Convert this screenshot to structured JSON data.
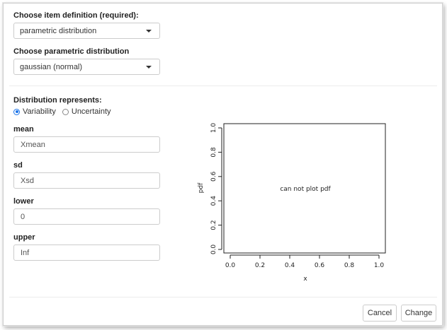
{
  "item_definition": {
    "label": "Choose item definition (required):",
    "selected": "parametric distribution"
  },
  "parametric_distribution": {
    "label": "Choose parametric distribution",
    "selected": "gaussian (normal)"
  },
  "represents": {
    "label": "Distribution represents:",
    "options": [
      {
        "label": "Variability",
        "checked": true
      },
      {
        "label": "Uncertainty",
        "checked": false
      }
    ]
  },
  "fields": {
    "mean": {
      "label": "mean",
      "value": "Xmean"
    },
    "sd": {
      "label": "sd",
      "value": "Xsd"
    },
    "lower": {
      "label": "lower",
      "value": "0"
    },
    "upper": {
      "label": "upper",
      "value": "Inf"
    }
  },
  "plot": {
    "message": "can not plot pdf",
    "xlabel": "x",
    "ylabel": "pdf",
    "xlim": [
      0.0,
      1.0
    ],
    "ylim": [
      0.0,
      1.0
    ],
    "x_ticks": [
      "0.0",
      "0.2",
      "0.4",
      "0.6",
      "0.8",
      "1.0"
    ],
    "y_ticks": [
      "0.0",
      "0.2",
      "0.4",
      "0.6",
      "0.8",
      "1.0"
    ]
  },
  "buttons": {
    "cancel": "Cancel",
    "change": "Change"
  },
  "colors": {
    "accent": "#1a73e8"
  }
}
